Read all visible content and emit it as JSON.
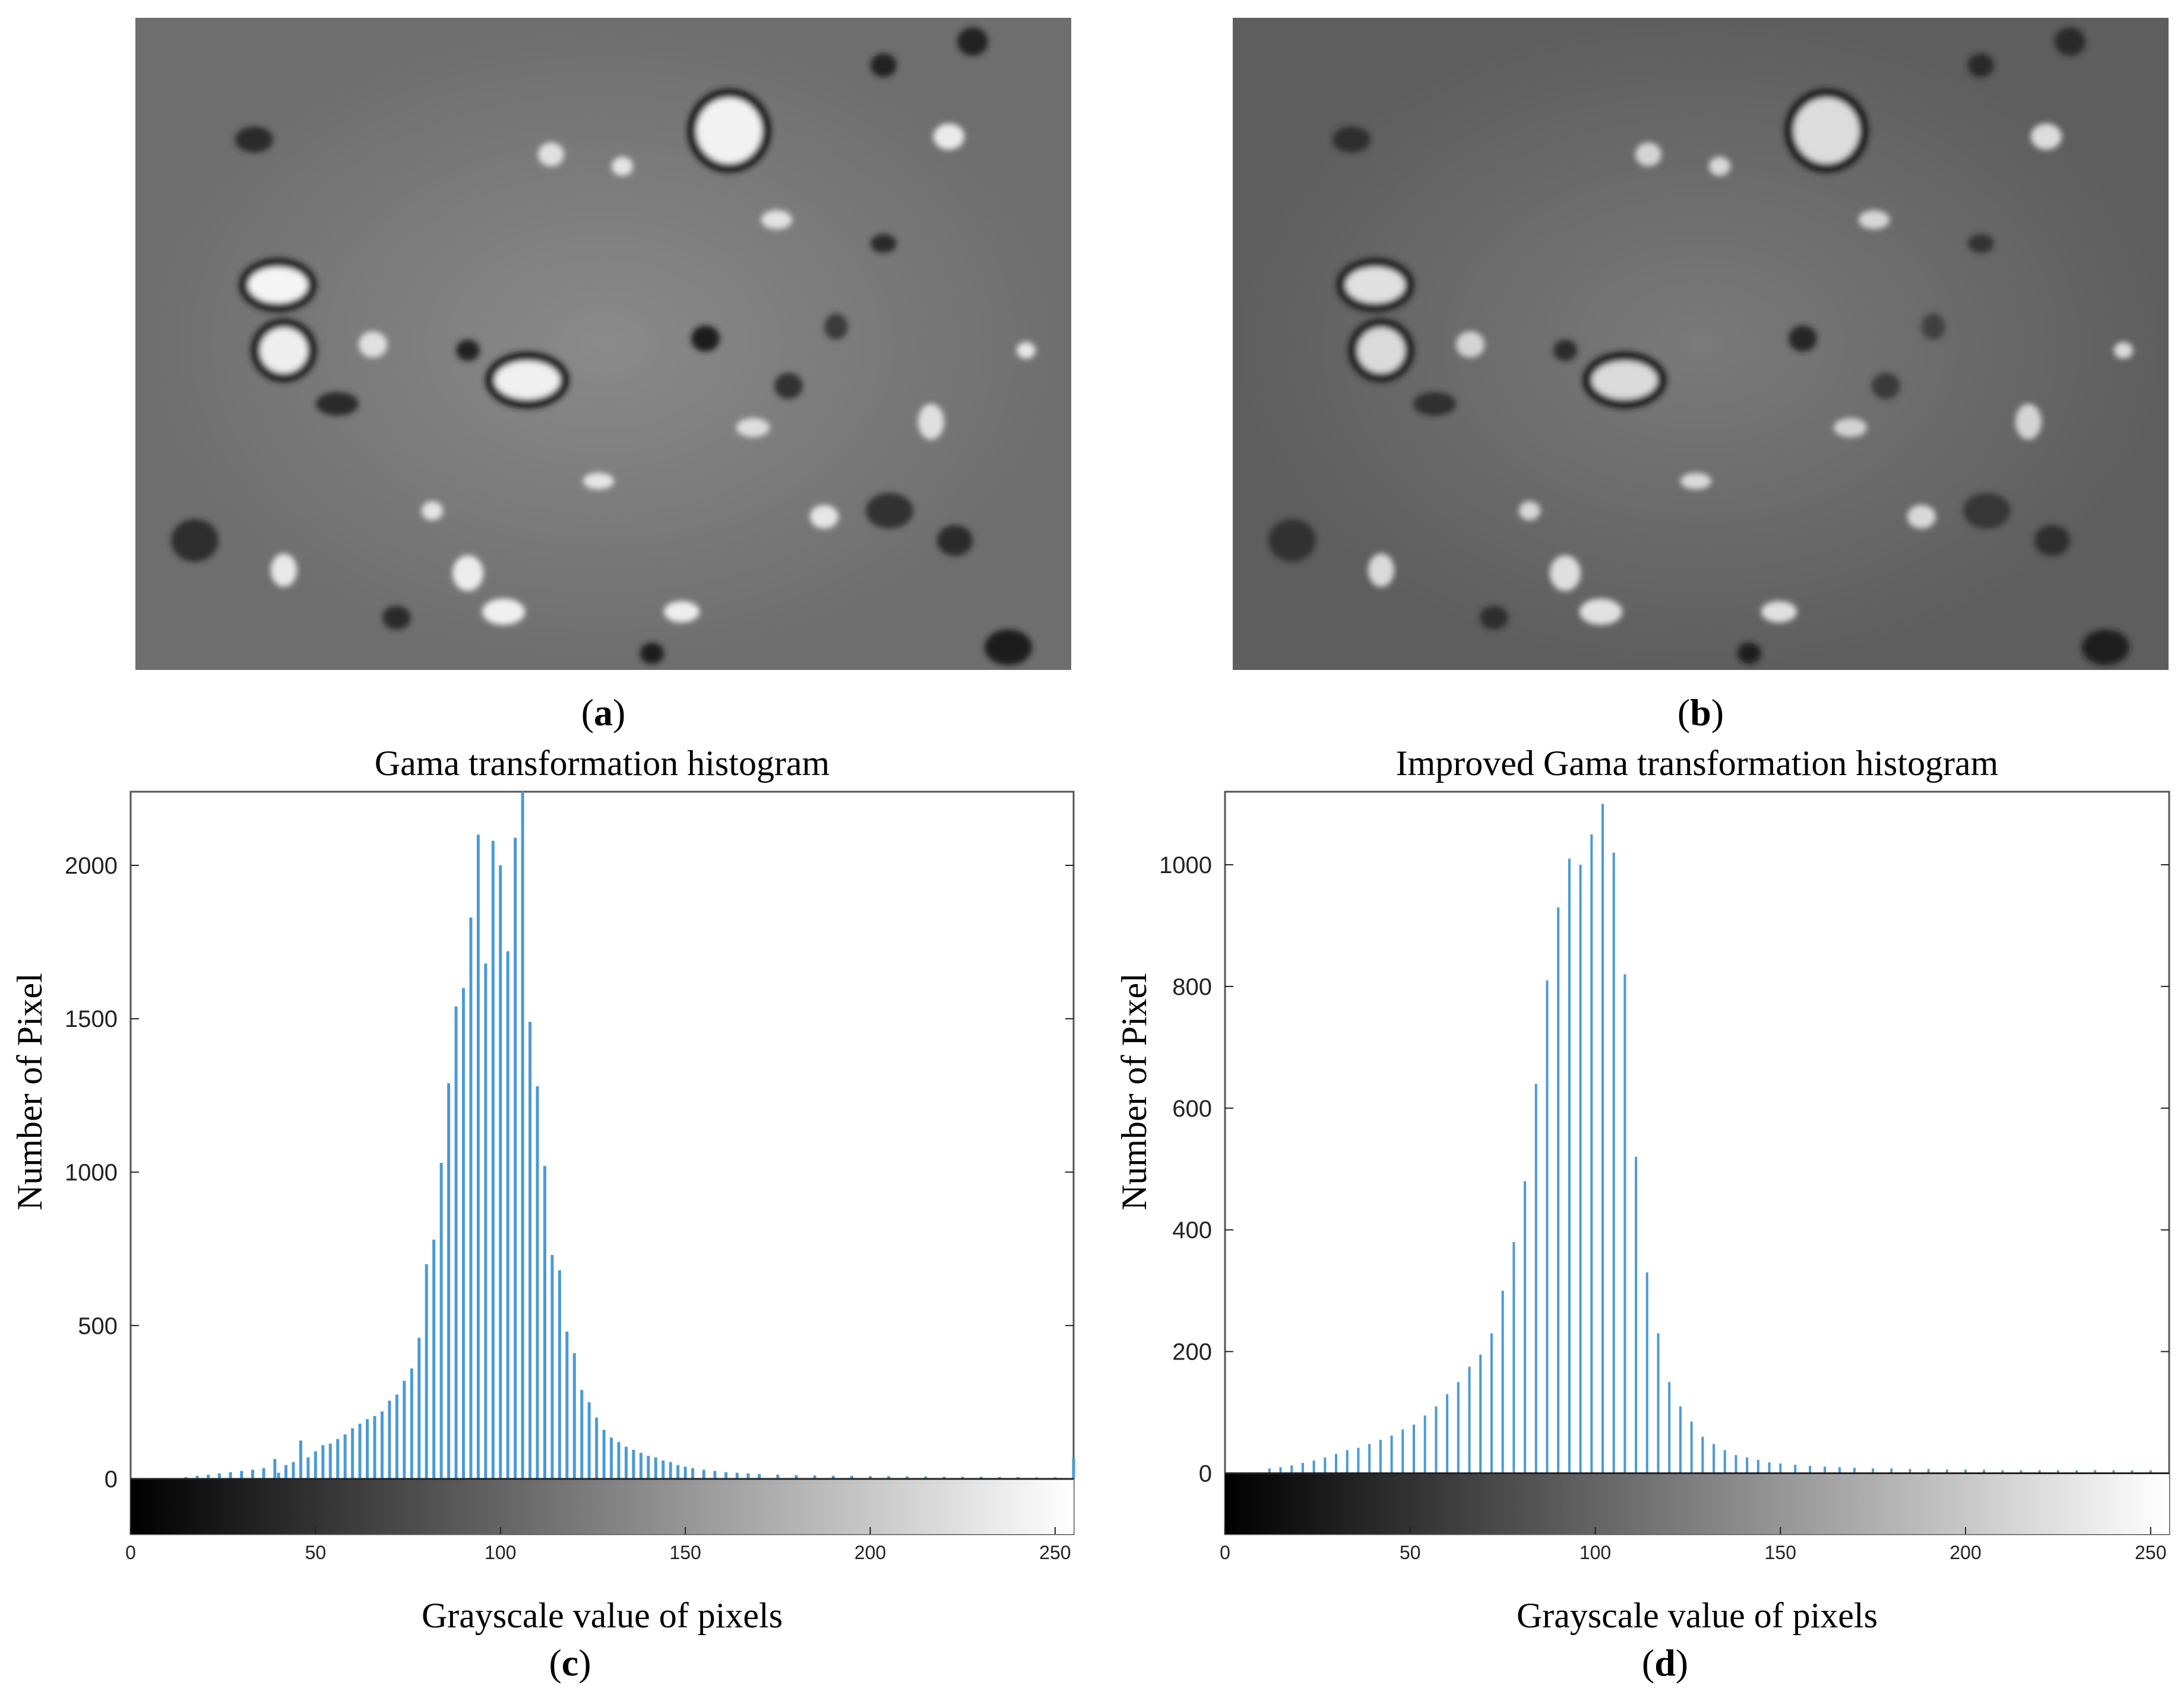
{
  "panels": {
    "a": {
      "letter": "a"
    },
    "b": {
      "letter": "b"
    },
    "c": {
      "letter": "c"
    },
    "d": {
      "letter": "d"
    }
  },
  "colors": {
    "bar": "#4a9ad6",
    "axis": "#222222",
    "frame": "#555555"
  },
  "chart_data": [
    {
      "type": "bar",
      "panel": "c",
      "title": "Gama transformation histogram",
      "xlabel": "Grayscale value of pixels",
      "ylabel": "Number of Pixel",
      "xlim": [
        0,
        255
      ],
      "ylim": [
        -180,
        2240
      ],
      "xticks": [
        0,
        50,
        100,
        150,
        200,
        250
      ],
      "yticks": [
        0,
        500,
        1000,
        1500,
        2000
      ],
      "colorbar": "grayscale gradient below zero, black to white",
      "x": [
        15,
        18,
        21,
        24,
        27,
        30,
        33,
        36,
        39,
        40,
        42,
        44,
        46,
        48,
        50,
        52,
        54,
        56,
        58,
        60,
        62,
        64,
        66,
        68,
        70,
        72,
        74,
        76,
        78,
        80,
        82,
        84,
        86,
        88,
        90,
        92,
        94,
        96,
        98,
        100,
        102,
        104,
        106,
        108,
        110,
        112,
        114,
        116,
        118,
        120,
        122,
        124,
        126,
        128,
        130,
        132,
        134,
        136,
        138,
        140,
        142,
        144,
        146,
        148,
        150,
        152,
        155,
        158,
        161,
        164,
        167,
        170,
        175,
        180,
        185,
        190,
        195,
        200,
        205,
        210,
        215,
        220,
        225,
        230,
        235,
        240,
        245,
        250,
        255
      ],
      "values": [
        6,
        10,
        14,
        18,
        22,
        26,
        30,
        35,
        65,
        20,
        45,
        55,
        125,
        70,
        90,
        110,
        115,
        130,
        145,
        165,
        180,
        195,
        205,
        220,
        255,
        275,
        320,
        360,
        460,
        700,
        780,
        1030,
        1290,
        1540,
        1600,
        1830,
        2100,
        1680,
        2080,
        2000,
        1720,
        2090,
        2250,
        1490,
        1280,
        1020,
        730,
        680,
        480,
        410,
        290,
        250,
        200,
        160,
        135,
        120,
        105,
        95,
        85,
        75,
        70,
        60,
        55,
        45,
        40,
        35,
        30,
        26,
        22,
        20,
        18,
        16,
        14,
        12,
        11,
        10,
        10,
        9,
        9,
        8,
        8,
        7,
        7,
        7,
        6,
        6,
        5,
        5,
        70
      ]
    },
    {
      "type": "bar",
      "panel": "d",
      "title": "Improved Gama transformation histogram",
      "xlabel": "Grayscale value of pixels",
      "ylabel": "Number of Pixel",
      "xlim": [
        0,
        255
      ],
      "ylim": [
        -100,
        1120
      ],
      "xticks": [
        0,
        50,
        100,
        150,
        200,
        250
      ],
      "yticks": [
        0,
        200,
        400,
        600,
        800,
        1000
      ],
      "colorbar": "grayscale gradient below zero, black to white",
      "x": [
        12,
        15,
        18,
        21,
        24,
        27,
        30,
        33,
        36,
        39,
        42,
        45,
        48,
        51,
        54,
        57,
        60,
        63,
        66,
        69,
        72,
        75,
        78,
        81,
        84,
        87,
        90,
        93,
        96,
        99,
        102,
        105,
        108,
        111,
        114,
        117,
        120,
        123,
        126,
        129,
        132,
        135,
        138,
        141,
        144,
        147,
        150,
        154,
        158,
        162,
        166,
        170,
        175,
        180,
        185,
        190,
        195,
        200,
        205,
        210,
        215,
        220,
        225,
        230,
        235,
        240,
        245,
        250
      ],
      "values": [
        8,
        10,
        13,
        17,
        21,
        26,
        32,
        38,
        42,
        48,
        55,
        62,
        72,
        80,
        95,
        110,
        130,
        150,
        175,
        195,
        230,
        300,
        380,
        480,
        640,
        810,
        930,
        1010,
        1000,
        1050,
        1100,
        1020,
        820,
        520,
        330,
        230,
        150,
        110,
        85,
        60,
        48,
        38,
        30,
        26,
        22,
        18,
        16,
        14,
        12,
        11,
        10,
        9,
        8,
        8,
        7,
        7,
        6,
        6,
        6,
        5,
        5,
        5,
        5,
        5,
        5,
        5,
        5,
        5
      ]
    }
  ]
}
